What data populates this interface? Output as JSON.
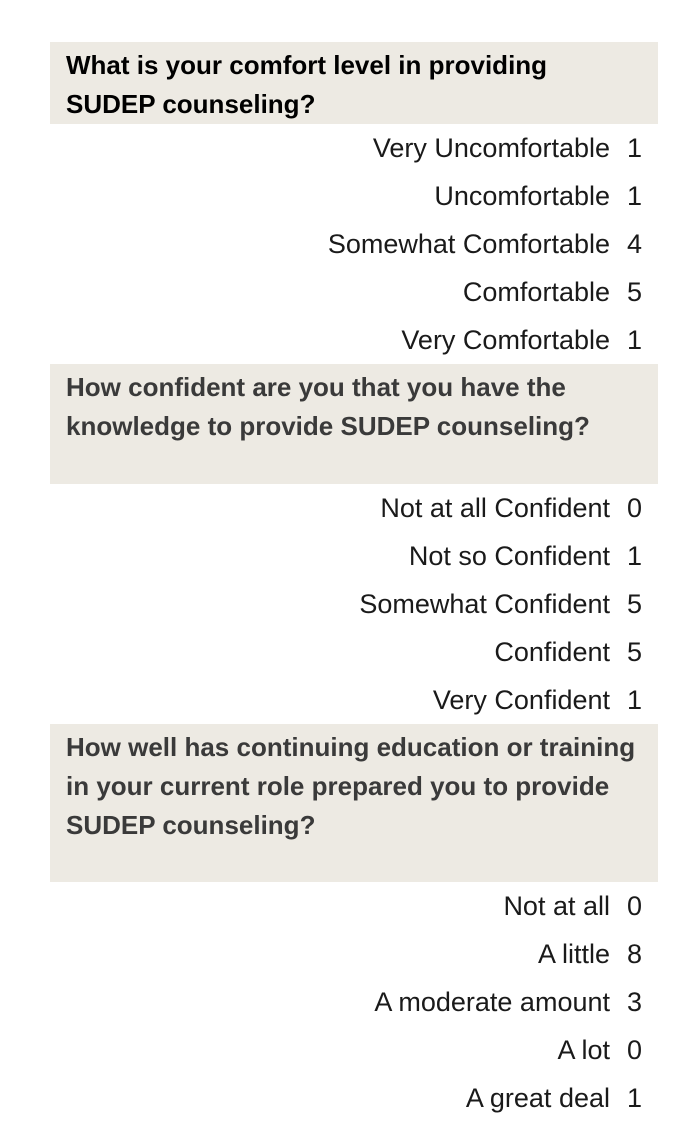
{
  "questions": [
    {
      "text": "What is your comfort level in providing SUDEP counseling?",
      "answers": [
        {
          "label": "Very Uncomfortable",
          "count": "1"
        },
        {
          "label": "Uncomfortable",
          "count": "1"
        },
        {
          "label": "Somewhat Comfortable",
          "count": "4"
        },
        {
          "label": "Comfortable",
          "count": "5"
        },
        {
          "label": "Very Comfortable",
          "count": "1"
        }
      ]
    },
    {
      "text": "How confident are you that you have the knowledge to provide SUDEP counseling?",
      "answers": [
        {
          "label": "Not at all Confident",
          "count": "0"
        },
        {
          "label": "Not so Confident",
          "count": "1"
        },
        {
          "label": "Somewhat Confident",
          "count": "5"
        },
        {
          "label": "Confident",
          "count": "5"
        },
        {
          "label": "Very Confident",
          "count": "1"
        }
      ]
    },
    {
      "text": "How well has continuing education or training in your current role prepared you to provide SUDEP counseling?",
      "answers": [
        {
          "label": "Not at all",
          "count": "0"
        },
        {
          "label": "A little",
          "count": "8"
        },
        {
          "label": "A moderate amount",
          "count": "3"
        },
        {
          "label": "A lot",
          "count": "0"
        },
        {
          "label": "A great deal",
          "count": "1"
        }
      ]
    }
  ]
}
